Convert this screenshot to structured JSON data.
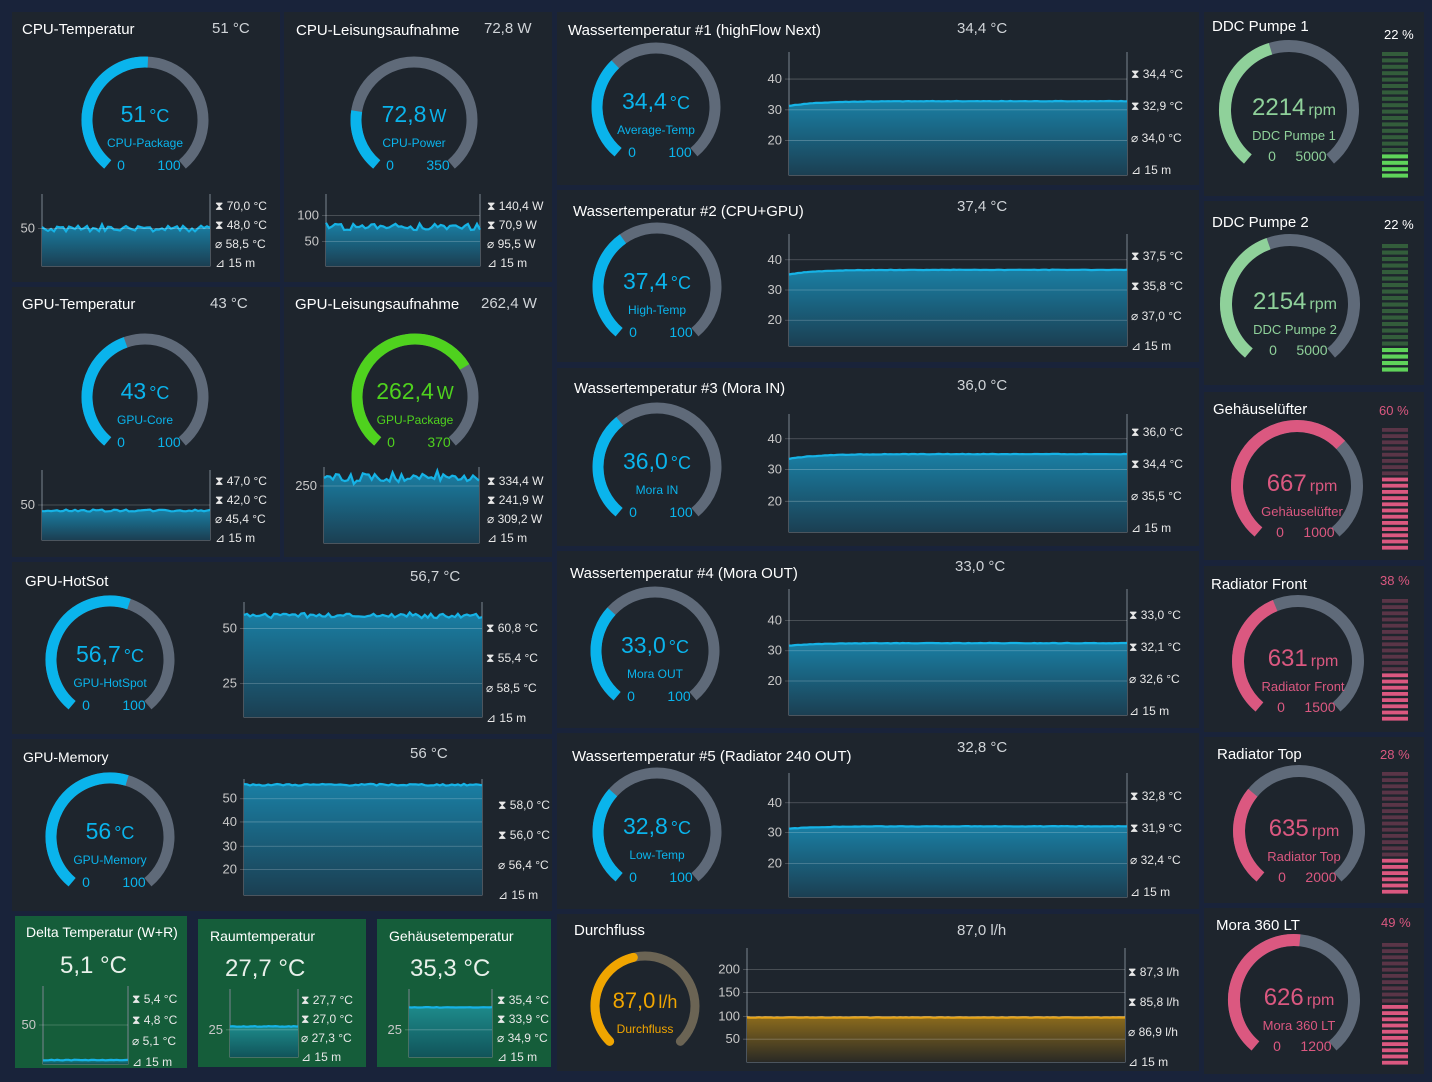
{
  "colors": {
    "cyan": "#0ab4ec",
    "track": "#5f6a79",
    "green": "#4fd21e",
    "mint": "#8fd19a",
    "pink": "#db5880",
    "amber": "#f0a500",
    "panel": "#1e252d",
    "box": "#155d3a"
  },
  "cpu_temp": {
    "title": "CPU-Temperatur",
    "value": "51 °C",
    "gauge_value": "51",
    "unit": "°C",
    "label": "CPU-Package",
    "min": "0",
    "max": "100",
    "level": 0.51,
    "axis": [
      "50"
    ],
    "max_stat": "70,0 °C",
    "min_stat": "48,0 °C",
    "avg_stat": "58,5 °C",
    "window": "15 m"
  },
  "cpu_power": {
    "title": "CPU-Leisungsaufnahme",
    "value": "72,8 W",
    "gauge_value": "72,8",
    "unit": "W",
    "label": "CPU-Power",
    "min": "0",
    "max": "350",
    "level": 0.21,
    "axis": [
      "100",
      "50"
    ],
    "max_stat": "140,4 W",
    "min_stat": "70,9 W",
    "avg_stat": "95,5 W",
    "window": "15 m"
  },
  "gpu_temp": {
    "title": "GPU-Temperatur",
    "value": "43 °C",
    "gauge_value": "43",
    "unit": "°C",
    "label": "GPU-Core",
    "min": "0",
    "max": "100",
    "level": 0.43,
    "axis": [
      "50"
    ],
    "max_stat": "47,0 °C",
    "min_stat": "42,0 °C",
    "avg_stat": "45,4 °C",
    "window": "15 m"
  },
  "gpu_power": {
    "title": "GPU-Leisungsaufnahme",
    "value": "262,4 W",
    "gauge_value": "262,4",
    "unit": "W",
    "label": "GPU-Package",
    "min": "0",
    "max": "370",
    "level": 0.71,
    "axis": [
      "250"
    ],
    "max_stat": "334,4 W",
    "min_stat": "241,9 W",
    "avg_stat": "309,2 W",
    "window": "15 m"
  },
  "gpu_hotspot": {
    "title": "GPU-HotSot",
    "value": "56,7 °C",
    "gauge_value": "56,7",
    "unit": "°C",
    "label": "GPU-HotSpot",
    "min": "0",
    "max": "100",
    "level": 0.567,
    "axis": [
      "50",
      "25"
    ],
    "max_stat": "60,8 °C",
    "min_stat": "55,4 °C",
    "avg_stat": "58,5 °C",
    "window": "15 m"
  },
  "gpu_memory": {
    "title": "GPU-Memory",
    "value": "56 °C",
    "gauge_value": "56",
    "unit": "°C",
    "label": "GPU-Memory",
    "min": "0",
    "max": "100",
    "level": 0.56,
    "axis": [
      "50",
      "40",
      "30",
      "20"
    ],
    "max_stat": "58,0 °C",
    "min_stat": "56,0 °C",
    "avg_stat": "56,4 °C",
    "window": "15 m"
  },
  "delta_temp": {
    "title": "Delta Temperatur (W+R)",
    "value": "5,1 °C",
    "axis": [
      "50"
    ],
    "max_stat": "5,4 °C",
    "min_stat": "4,8 °C",
    "avg_stat": "5,1 °C",
    "window": "15 m"
  },
  "room_temp": {
    "title": "Raumtemperatur",
    "value": "27,7 °C",
    "axis": [
      "25"
    ],
    "max_stat": "27,7 °C",
    "min_stat": "27,0 °C",
    "avg_stat": "27,3 °C",
    "window": "15 m"
  },
  "case_temp": {
    "title": "Gehäusetemperatur",
    "value": "35,3 °C",
    "axis": [
      "25"
    ],
    "max_stat": "35,4 °C",
    "min_stat": "33,9 °C",
    "avg_stat": "34,9 °C",
    "window": "15 m"
  },
  "water1": {
    "title": "Wassertemperatur #1 (highFlow Next)",
    "value": "34,4 °C",
    "gauge_value": "34,4",
    "unit": "°C",
    "label": "Average-Temp",
    "min": "0",
    "max": "100",
    "level": 0.344,
    "axis": [
      "40",
      "30",
      "20"
    ],
    "max_stat": "34,4 °C",
    "min_stat": "32,9 °C",
    "avg_stat": "34,0 °C",
    "window": "15 m"
  },
  "water2": {
    "title": "Wassertemperatur #2 (CPU+GPU)",
    "value": "37,4 °C",
    "gauge_value": "37,4",
    "unit": "°C",
    "label": "High-Temp",
    "min": "0",
    "max": "100",
    "level": 0.374,
    "axis": [
      "40",
      "30",
      "20"
    ],
    "max_stat": "37,5 °C",
    "min_stat": "35,8 °C",
    "avg_stat": "37,0 °C",
    "window": "15 m"
  },
  "water3": {
    "title": "Wassertemperatur #3 (Mora IN)",
    "value": "36,0 °C",
    "gauge_value": "36,0",
    "unit": "°C",
    "label": "Mora IN",
    "min": "0",
    "max": "100",
    "level": 0.36,
    "axis": [
      "40",
      "30",
      "20"
    ],
    "max_stat": "36,0 °C",
    "min_stat": "34,4 °C",
    "avg_stat": "35,5 °C",
    "window": "15 m"
  },
  "water4": {
    "title": "Wassertemperatur #4 (Mora OUT)",
    "value": "33,0 °C",
    "gauge_value": "33,0",
    "unit": "°C",
    "label": "Mora OUT",
    "min": "0",
    "max": "100",
    "level": 0.33,
    "axis": [
      "40",
      "30",
      "20"
    ],
    "max_stat": "33,0 °C",
    "min_stat": "32,1 °C",
    "avg_stat": "32,6 °C",
    "window": "15 m"
  },
  "water5": {
    "title": "Wassertemperatur #5 (Radiator 240 OUT)",
    "value": "32,8 °C",
    "gauge_value": "32,8",
    "unit": "°C",
    "label": "Low-Temp",
    "min": "0",
    "max": "100",
    "level": 0.328,
    "axis": [
      "40",
      "30",
      "20"
    ],
    "max_stat": "32,8 °C",
    "min_stat": "31,9 °C",
    "avg_stat": "32,4 °C",
    "window": "15 m"
  },
  "flow": {
    "title": "Durchfluss",
    "value": "87,0 l/h",
    "gauge_value": "87,0",
    "unit": "l/h",
    "label": "Durchfluss",
    "level": 0.45,
    "axis": [
      "200",
      "150",
      "100",
      "50"
    ],
    "max_stat": "87,3 l/h",
    "min_stat": "85,8 l/h",
    "avg_stat": "86,9 l/h",
    "window": "15 m"
  },
  "pump1": {
    "title": "DDC Pumpe 1",
    "pct": "22 %",
    "gauge_value": "2214",
    "unit": "rpm",
    "label": "DDC Pumpe 1",
    "min": "0",
    "max": "5000",
    "level": 0.44,
    "bar_level": 0.22
  },
  "pump2": {
    "title": "DDC Pumpe 2",
    "pct": "22 %",
    "gauge_value": "2154",
    "unit": "rpm",
    "label": "DDC Pumpe 2",
    "min": "0",
    "max": "5000",
    "level": 0.43,
    "bar_level": 0.22
  },
  "fan_case": {
    "title": "Gehäuselüfter",
    "pct": "60 %",
    "gauge_value": "667",
    "unit": "rpm",
    "label": "Gehäuselüfter",
    "min": "0",
    "max": "1000",
    "level": 0.667,
    "bar_level": 0.6
  },
  "fan_front": {
    "title": "Radiator Front",
    "pct": "38 %",
    "gauge_value": "631",
    "unit": "rpm",
    "label": "Radiator Front",
    "min": "0",
    "max": "1500",
    "level": 0.42,
    "bar_level": 0.38
  },
  "fan_top": {
    "title": "Radiator Top",
    "pct": "28 %",
    "gauge_value": "635",
    "unit": "rpm",
    "label": "Radiator Top",
    "min": "0",
    "max": "2000",
    "level": 0.32,
    "bar_level": 0.28
  },
  "fan_mora": {
    "title": "Mora 360 LT",
    "pct": "49 %",
    "gauge_value": "626",
    "unit": "rpm",
    "label": "Mora 360 LT",
    "min": "0",
    "max": "1200",
    "level": 0.52,
    "bar_level": 0.49
  }
}
